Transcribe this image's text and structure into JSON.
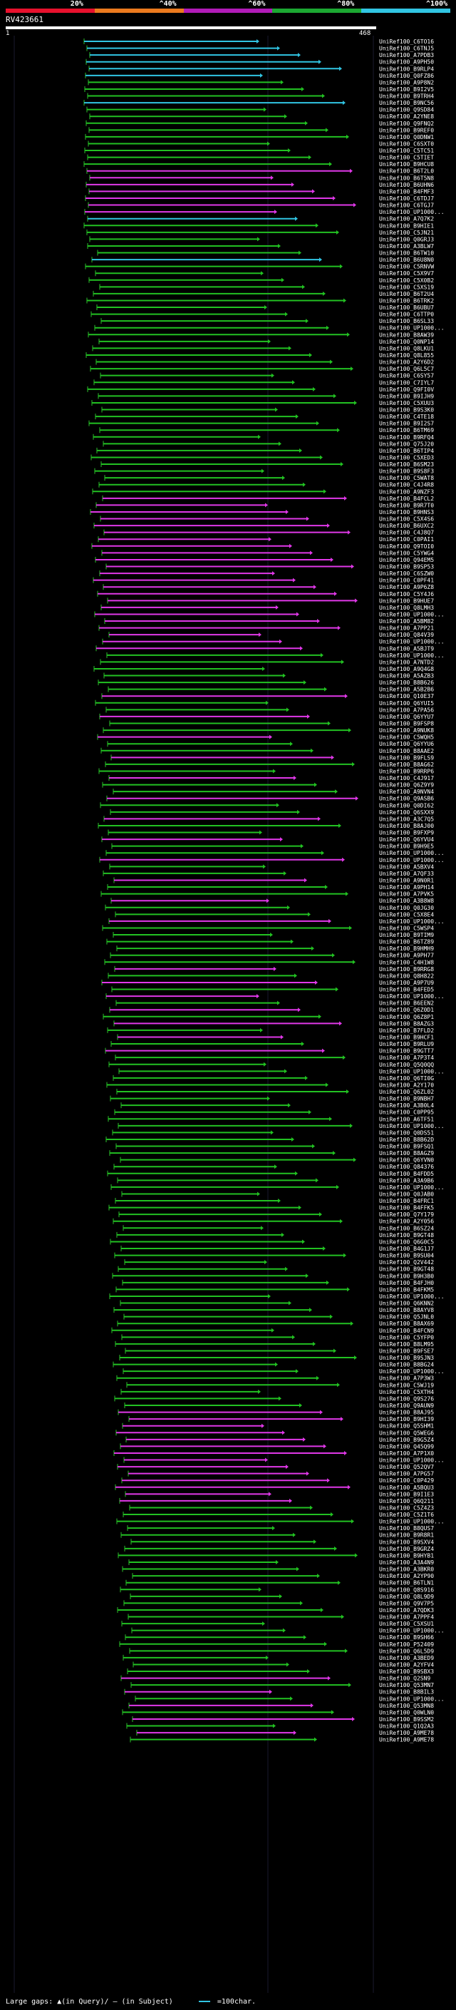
{
  "header": {
    "query_name": "RV423661",
    "tick_start": "1",
    "tick_end": "468"
  },
  "identity_scale": [
    {
      "label": "20%",
      "color": "#e8112d"
    },
    {
      "label": "^40%",
      "color": "#ec7a1e"
    },
    {
      "label": "^60%",
      "color": "#b21bb8"
    },
    {
      "label": "^80%",
      "color": "#1ca832"
    },
    {
      "label": "^100%",
      "color": "#31c5e3"
    }
  ],
  "colors": {
    "cyan": "#31c5e3",
    "purple": "#e038e8",
    "green": "#22c122",
    "stem": "#2cc22c",
    "bg": "#000000"
  },
  "hits": [
    "UniRef100_C6TO16",
    "UniRef100_C6TNJ5",
    "UniRef100_A7PDB3",
    "UniRef100_A9PH50",
    "UniRef100_B9RLP4",
    "UniRef100_Q0FZ86",
    "UniRef100_A9P8N2",
    "UniRef100_B9I2V5",
    "UniRef100_B9TRH4",
    "UniRef100_B9NC56",
    "UniRef100_Q9SD84",
    "UniRef100_A2YNE8",
    "UniRef100_Q9FNQ2",
    "UniRef100_B9REF0",
    "UniRef100_Q0DNW1",
    "UniRef100_C6SXT0",
    "UniRef100_C5TC51",
    "UniRef100_C5TIET",
    "UniRef100_B9HCU8",
    "UniRef100_B6T2L0",
    "UniRef100_B6T5N8",
    "UniRef100_B6UHN6",
    "UniRef100_B4FMF3",
    "UniRef100_C6TDJ7",
    "UniRef100_C6TGJ7",
    "UniRef100_UP1000...",
    "UniRef100_A7Q7K2",
    "UniRef100_B9HIE1",
    "UniRef100_C5JN21",
    "UniRef100_Q0GRJ3",
    "UniRef100_A3BLW7",
    "UniRef100_B6TW10",
    "UniRef100_B6U8N0",
    "UniRef100_C5RNVW",
    "UniRef100_C5X9V7",
    "UniRef100_C5X0B2",
    "UniRef100_C5XS19",
    "UniRef100_B6T2U4",
    "UniRef100_B6TRK2",
    "UniRef100_B6UBU7",
    "UniRef100_C6TTP0",
    "UniRef100_B6SL33",
    "UniRef100_UP1000...",
    "UniRef100_B8AW39",
    "UniRef100_Q0NP14",
    "UniRef100_Q8LKU1",
    "UniRef100_Q8L855",
    "UniRef100_A2Y6D2",
    "UniRef100_Q6L5C7",
    "UniRef100_C6SY57",
    "UniRef100_C7IYL7",
    "UniRef100_Q9FI0V",
    "UniRef100_B9IJH9",
    "UniRef100_C5XUU3",
    "UniRef100_B9S3K0",
    "UniRef100_C4TE18",
    "UniRef100_B9I2S7",
    "UniRef100_B6TM69",
    "UniRef100_B9RFQ4",
    "UniRef100_Q75J20",
    "UniRef100_B6TIP4",
    "UniRef100_C5XED3",
    "UniRef100_B6SM23",
    "UniRef100_B9S8F3",
    "UniRef100_C5WAT8",
    "UniRef100_C4J4R8",
    "UniRef100_A9NZF3",
    "UniRef100_B4FCL2",
    "UniRef100_B9R7T0",
    "UniRef100_B9HNS3",
    "UniRef100_C5X4S6",
    "UniRef100_B6UXC2",
    "UniRef100_C4J8Q7",
    "UniRef100_C0PAI1",
    "UniRef100_Q9TOI0",
    "UniRef100_C5YWG4",
    "UniRef100_Q94EM5",
    "UniRef100_B9SP53",
    "UniRef100_C6SZW0",
    "UniRef100_C0PF41",
    "UniRef100_A9P6Z8",
    "UniRef100_C5Y4J6",
    "UniRef100_B9HUE7",
    "UniRef100_Q8LMH3",
    "UniRef100_UP1000...",
    "UniRef100_A5BM82",
    "UniRef100_A7PP21",
    "UniRef100_Q84V39",
    "UniRef100_UP1000...",
    "UniRef100_A5BJT9",
    "UniRef100_UP1000...",
    "UniRef100_A7NTD2",
    "UniRef100_A9Q4G8",
    "UniRef100_A5AZB3",
    "UniRef100_B8B626",
    "UniRef100_A5B2B6",
    "UniRef100_Q10E37",
    "UniRef100_Q6YUI5",
    "UniRef100_A7PA56",
    "UniRef100_Q6YYU7",
    "UniRef100_B9FSP8",
    "UniRef100_A9NUK8",
    "UniRef100_C5WQH5",
    "UniRef100_Q6YYU6",
    "UniRef100_B8AAE2",
    "UniRef100_B9FLS9",
    "UniRef100_B8AG62",
    "UniRef100_B9RRP6",
    "UniRef100_C4J917",
    "UniRef100_Q6Z9Y9",
    "UniRef100_A9NVN4",
    "UniRef100_Q9ASB6",
    "UniRef100_Q0DI62",
    "UniRef100_Q6SXX9",
    "UniRef100_A3C7Q5",
    "UniRef100_B8AJ00",
    "UniRef100_B9FXP9",
    "UniRef100_Q6YVU4",
    "UniRef100_B9H9E5",
    "UniRef100_UP1000...",
    "UniRef100_UP1000...",
    "UniRef100_A5BXV4",
    "UniRef100_A7QF33",
    "UniRef100_A9N0R1",
    "UniRef100_A9PH14",
    "UniRef100_A7PVK5",
    "UniRef100_A3B8W8",
    "UniRef100_Q0JG30",
    "UniRef100_C5X8E4",
    "UniRef100_UP1000...",
    "UniRef100_C5WSP4",
    "UniRef100_B9TIM9",
    "UniRef100_B6TZ89",
    "UniRef100_B9HMH9",
    "UniRef100_A9PH77",
    "UniRef100_C4H1W8",
    "UniRef100_B9RRG8",
    "UniRef100_Q8H822",
    "UniRef100_A9P7U9",
    "UniRef100_B4FED5",
    "UniRef100_UP1000...",
    "UniRef100_B6EEN2",
    "UniRef100_Q6Z0D1",
    "UniRef100_Q6Z8P1",
    "UniRef100_B8AZG3",
    "UniRef100_B7FLD2",
    "UniRef100_B9HCF1",
    "UniRef100_B9RLU9",
    "UniRef100_B9GTT7",
    "UniRef100_A7P3T4",
    "UniRef100_Q5Q0QQ",
    "UniRef100_UP1000...",
    "UniRef100_Q6TI0G",
    "UniRef100_A2Y170",
    "UniRef100_Q6ZL02",
    "UniRef100_B9NBH7",
    "UniRef100_A3B0L4",
    "UniRef100_C0PP95",
    "UniRef100_A6TF51",
    "UniRef100_UP1000...",
    "UniRef100_Q0DS51",
    "UniRef100_B8B62D",
    "UniRef100_B9FSQ1",
    "UniRef100_B8AGZ9",
    "UniRef100_Q6YVN0",
    "UniRef100_Q84376",
    "UniRef100_B4FDD5",
    "UniRef100_A3A9B6",
    "UniRef100_UP1000...",
    "UniRef100_Q0JAB0",
    "UniRef100_B4FRC1",
    "UniRef100_B4FFK5",
    "UniRef100_Q7Y179",
    "UniRef100_A2Y056",
    "UniRef100_B6SZ24",
    "UniRef100_B9GT48",
    "UniRef100_Q6G0C5",
    "UniRef100_B4G1J7",
    "UniRef100_B9SU04",
    "UniRef100_Q2V442",
    "UniRef100_B9GT48",
    "UniRef100_B9H3B0",
    "UniRef100_B4FJH0",
    "UniRef100_B4FKM5",
    "UniRef100_UP1000...",
    "UniRef100_Q6KNN2",
    "UniRef100_B8AYV8",
    "UniRef100_Q5JNL0",
    "UniRef100_B8AX69",
    "UniRef100_B4FCN9",
    "UniRef100_C5YFP0",
    "UniRef100_B8LM95",
    "UniRef100_B9FSE7",
    "UniRef100_B9SJN3",
    "UniRef100_B8BG24",
    "UniRef100_UP1000...",
    "UniRef100_A7P3W3",
    "UniRef100_C5WJ19",
    "UniRef100_C5XTH4",
    "UniRef100_Q9S276",
    "UniRef100_Q9AUN9",
    "UniRef100_B8AJ95",
    "UniRef100_B9HI39",
    "UniRef100_Q5SHM1",
    "UniRef100_Q5WEG6",
    "UniRef100_B9G5Z4",
    "UniRef100_Q45Q99",
    "UniRef100_A7P1X0",
    "UniRef100_UP1000...",
    "UniRef100_Q52QV7",
    "UniRef100_A7PG57",
    "UniRef100_C0P429",
    "UniRef100_A5BQU3",
    "UniRef100_B9I1E3",
    "UniRef100_Q6Q211",
    "UniRef100_C5Z4Z3",
    "UniRef100_C5Z1T6",
    "UniRef100_UP1000...",
    "UniRef100_B8QUS7",
    "UniRef100_B9R8R1",
    "UniRef100_B9SXV4",
    "UniRef100_B9GRZ4",
    "UniRef100_B9HYB1",
    "UniRef100_A3A4N9",
    "UniRef100_A3BKR0",
    "UniRef100_A2YP90",
    "UniRef100_B6TLN1",
    "UniRef100_Q8S916",
    "UniRef100_Q8L9D9",
    "UniRef100_Q9V7P5",
    "UniRef100_A7QDK3",
    "UniRef100_A7PPF4",
    "UniRef100_C5XSU1",
    "UniRef100_UP1000...",
    "UniRef100_B9SH66",
    "UniRef100_P52409",
    "UniRef100_Q6L5D9",
    "UniRef100_A3BED9",
    "UniRef100_A2YFV4",
    "UniRef100_B9SBX3",
    "UniRef100_Q2SN9",
    "UniRef100_Q53MN7",
    "UniRef100_B8BIL3",
    "UniRef100_UP1000...",
    "UniRef100_Q53MN8",
    "UniRef100_Q0WLN0",
    "UniRef100_B9SSM2",
    "UniRef100_Q1Q2A3",
    "UniRef100_A9ME78",
    "UniRef100_A9ME78"
  ],
  "footer": {
    "large_gaps_text": "Large gaps: ▲(in Query)/ – (in Subject)",
    "scale_text": "=100char."
  }
}
